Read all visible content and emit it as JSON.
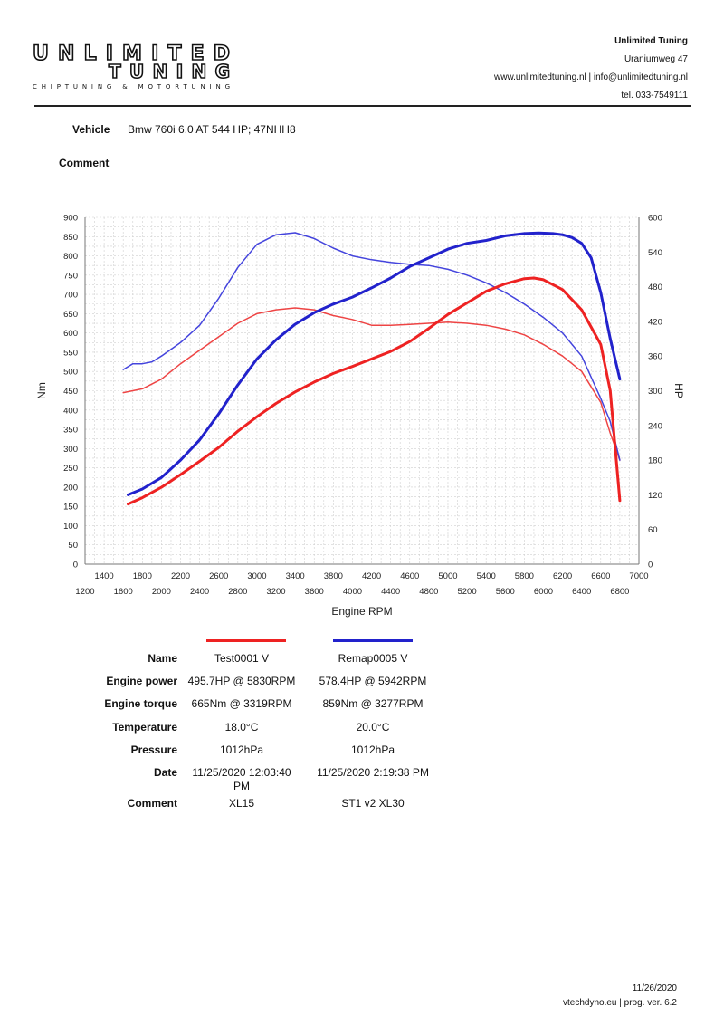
{
  "header": {
    "logo_text": "UNLIMITED TUNING",
    "logo_line1": "UNLIMITED",
    "logo_line2": "TUNING",
    "logo_sub": "CHIPTUNING & MOTORTUNING",
    "company_name": "Unlimited Tuning",
    "address": "Uraniumweg 47",
    "web_email": "www.unlimitedtuning.nl | info@unlimitedtuning.nl",
    "phone": "tel. 033-7549111"
  },
  "vehicle": {
    "label": "Vehicle",
    "value": "Bmw 760i 6.0 AT 544 HP; 47NHH8"
  },
  "comment": {
    "label": "Comment"
  },
  "chart_data": {
    "type": "line",
    "xlabel": "Engine RPM",
    "ylabel_left": "Nm",
    "ylabel_right": "HP",
    "xlim": [
      1200,
      7000
    ],
    "ylim_left": [
      0,
      900
    ],
    "ylim_right": [
      0,
      600
    ],
    "grid": true,
    "x_ticks_top": [
      "1400",
      "1800",
      "2200",
      "2600",
      "3000",
      "3400",
      "3800",
      "4200",
      "4600",
      "5000",
      "5400",
      "5800",
      "6200",
      "6600",
      "7000"
    ],
    "x_ticks_bottom": [
      "1200",
      "1600",
      "2000",
      "2400",
      "2800",
      "3200",
      "3600",
      "4000",
      "4400",
      "4800",
      "5200",
      "5600",
      "6000",
      "6400",
      "6800"
    ],
    "y_ticks_left": [
      "0",
      "50",
      "100",
      "150",
      "200",
      "250",
      "300",
      "350",
      "400",
      "450",
      "500",
      "550",
      "600",
      "650",
      "700",
      "750",
      "800",
      "850",
      "900"
    ],
    "y_ticks_right": [
      "0",
      "60",
      "120",
      "180",
      "240",
      "300",
      "360",
      "420",
      "480",
      "540",
      "600"
    ],
    "series": [
      {
        "name": "Test0001 V",
        "metric": "torque",
        "axis": "left",
        "color": "#ee4444",
        "width": 1.5,
        "x": [
          1600,
          1800,
          2000,
          2200,
          2400,
          2600,
          2800,
          3000,
          3200,
          3400,
          3600,
          3800,
          4000,
          4200,
          4400,
          4600,
          4800,
          5000,
          5200,
          5400,
          5600,
          5800,
          6000,
          6200,
          6400,
          6600,
          6700,
          6800
        ],
        "y": [
          445,
          455,
          480,
          520,
          555,
          590,
          625,
          650,
          660,
          665,
          660,
          645,
          635,
          620,
          620,
          622,
          625,
          628,
          625,
          620,
          610,
          595,
          570,
          540,
          500,
          420,
          340,
          270
        ]
      },
      {
        "name": "Remap0005 V",
        "metric": "torque",
        "axis": "left",
        "color": "#4444dd",
        "width": 1.5,
        "x": [
          1600,
          1700,
          1800,
          1900,
          2000,
          2200,
          2400,
          2600,
          2800,
          3000,
          3200,
          3400,
          3600,
          3800,
          4000,
          4200,
          4400,
          4600,
          4800,
          5000,
          5200,
          5400,
          5600,
          5800,
          6000,
          6200,
          6400,
          6600,
          6700,
          6800
        ],
        "y": [
          505,
          520,
          520,
          525,
          540,
          575,
          620,
          690,
          770,
          830,
          855,
          860,
          845,
          820,
          800,
          790,
          783,
          778,
          775,
          765,
          750,
          730,
          705,
          675,
          640,
          600,
          540,
          430,
          370,
          270
        ]
      },
      {
        "name": "Test0001 V",
        "metric": "power",
        "axis": "right",
        "color": "#ee2222",
        "width": 3,
        "x": [
          1650,
          1800,
          2000,
          2200,
          2400,
          2600,
          2800,
          3000,
          3200,
          3400,
          3600,
          3800,
          4000,
          4200,
          4400,
          4600,
          4800,
          5000,
          5200,
          5400,
          5600,
          5800,
          5900,
          6000,
          6200,
          6400,
          6600,
          6700,
          6800
        ],
        "y": [
          104,
          115,
          133,
          155,
          178,
          202,
          230,
          255,
          278,
          298,
          315,
          330,
          342,
          355,
          368,
          385,
          408,
          432,
          452,
          472,
          485,
          494,
          495,
          492,
          475,
          440,
          380,
          300,
          110
        ]
      },
      {
        "name": "Remap0005 V",
        "metric": "power",
        "axis": "right",
        "color": "#2222cc",
        "width": 3,
        "x": [
          1650,
          1800,
          2000,
          2200,
          2400,
          2600,
          2800,
          3000,
          3200,
          3400,
          3600,
          3800,
          4000,
          4200,
          4400,
          4600,
          4800,
          5000,
          5200,
          5400,
          5600,
          5800,
          5950,
          6100,
          6200,
          6300,
          6400,
          6500,
          6600,
          6700,
          6800
        ],
        "y": [
          120,
          130,
          150,
          180,
          215,
          260,
          310,
          355,
          388,
          415,
          435,
          450,
          462,
          478,
          495,
          515,
          530,
          545,
          555,
          560,
          568,
          572,
          573,
          572,
          570,
          565,
          555,
          530,
          470,
          390,
          320
        ]
      }
    ]
  },
  "table": {
    "rows": [
      {
        "label": "Name",
        "v1": "Test0001 V",
        "v2": "Remap0005 V"
      },
      {
        "label": "Engine power",
        "v1": "495.7HP @  5830RPM",
        "v2": "578.4HP @  5942RPM"
      },
      {
        "label": "Engine torque",
        "v1": "665Nm @ 3319RPM",
        "v2": "859Nm @ 3277RPM"
      },
      {
        "label": "Temperature",
        "v1": "18.0°C",
        "v2": "20.0°C"
      },
      {
        "label": "Pressure",
        "v1": "1012hPa",
        "v2": "1012hPa"
      },
      {
        "label": "Date",
        "v1": "11/25/2020 12:03:40",
        "v1b": "PM",
        "v2": "11/25/2020 2:19:38 PM"
      },
      {
        "label": "Comment",
        "v1": "XL15",
        "v2": "ST1 v2 XL30"
      }
    ],
    "legend_colors": [
      "#ee2222",
      "#2222cc"
    ]
  },
  "footer": {
    "date": "11/26/2020",
    "program": "vtechdyno.eu | prog. ver. 6.2"
  }
}
